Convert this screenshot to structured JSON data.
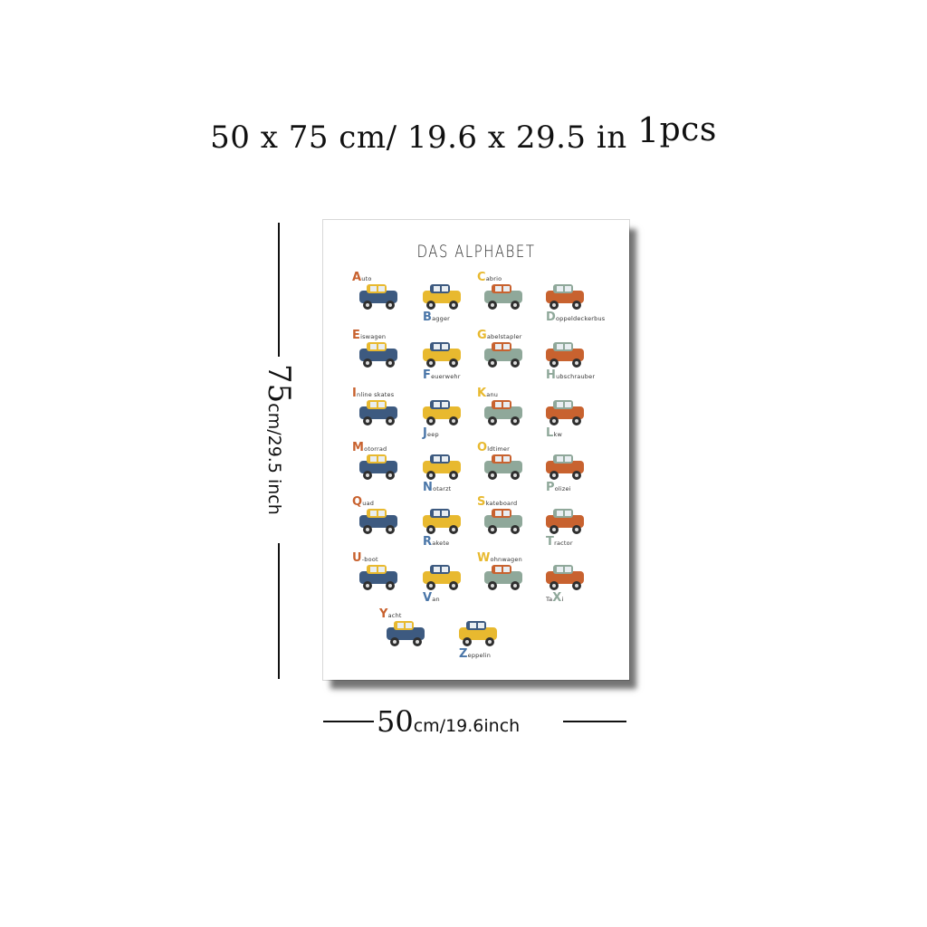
{
  "headline": {
    "size_text": "50 x 75 cm/ 19.6  x  29.5 in",
    "count_num": "1",
    "count_unit": "pcs"
  },
  "poster": {
    "title": "DAS ALPHABET",
    "items": [
      {
        "letter": "A",
        "rest": "uto"
      },
      {
        "letter": "B",
        "rest": "agger"
      },
      {
        "letter": "C",
        "rest": "abrio"
      },
      {
        "letter": "D",
        "rest": "oppeldeckerbus"
      },
      {
        "letter": "E",
        "rest": "iswagen"
      },
      {
        "letter": "F",
        "rest": "euerwehr"
      },
      {
        "letter": "G",
        "rest": "abelstapler"
      },
      {
        "letter": "H",
        "rest": "ubschrauber"
      },
      {
        "letter": "I",
        "rest": "nline skates"
      },
      {
        "letter": "J",
        "rest": "eep"
      },
      {
        "letter": "K",
        "rest": "anu"
      },
      {
        "letter": "L",
        "rest": "kw"
      },
      {
        "letter": "M",
        "rest": "otorrad"
      },
      {
        "letter": "N",
        "rest": "otarzt"
      },
      {
        "letter": "O",
        "rest": "ldtimer"
      },
      {
        "letter": "P",
        "rest": "olizei"
      },
      {
        "letter": "Q",
        "rest": "uad"
      },
      {
        "letter": "R",
        "rest": "akete"
      },
      {
        "letter": "S",
        "rest": "kateboard"
      },
      {
        "letter": "T",
        "rest": "ractor"
      },
      {
        "letter": "U",
        "rest": "-boot"
      },
      {
        "letter": "V",
        "rest": "an"
      },
      {
        "letter": "W",
        "rest": "ohnwagen"
      },
      {
        "letter": "X",
        "pre": "Ta",
        "rest": "i"
      },
      {
        "letter": "Y",
        "rest": "acht"
      },
      {
        "letter": "Z",
        "rest": "eppelin"
      }
    ]
  },
  "dimensions": {
    "height_value": "75",
    "height_unit": "cm/29.5 inch",
    "width_value": "50",
    "width_unit": "cm/19.6inch"
  },
  "colors": {
    "navy": "#3d5a80",
    "mustard": "#e8b92f",
    "rust": "#c8622f",
    "sage": "#8fa89a",
    "cream": "#f3e3cf",
    "blue": "#4a76a8"
  }
}
